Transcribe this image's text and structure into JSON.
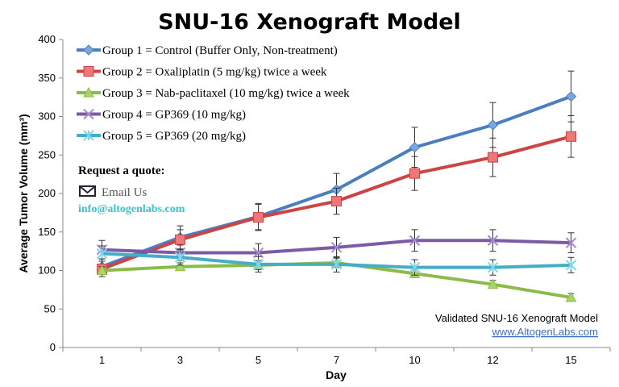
{
  "chart_data": {
    "type": "line",
    "title": "SNU-16 Xenograft Model",
    "xlabel": "Day",
    "ylabel": "Average Tumor Volume (mm³)",
    "categories": [
      "1",
      "3",
      "5",
      "7",
      "10",
      "12",
      "15"
    ],
    "ylim": [
      0,
      400
    ],
    "yticks": [
      0,
      50,
      100,
      150,
      200,
      250,
      300,
      350,
      400
    ],
    "grid": false,
    "legend_placement": "top-left",
    "series": [
      {
        "name": "Group 1 = Control (Buffer Only, Non-treatment)",
        "color": "#4a7ebf",
        "marker": "diamond",
        "values": [
          105,
          143,
          170,
          205,
          260,
          289,
          326
        ],
        "errors": [
          10,
          15,
          17,
          21,
          26,
          29,
          33
        ]
      },
      {
        "name": "Group 2 = Oxaliplatin (5 mg/kg) twice a week",
        "color": "#cc4444",
        "marker": "square",
        "values": [
          102,
          140,
          169,
          190,
          226,
          247,
          274
        ],
        "errors": [
          10,
          13,
          17,
          17,
          22,
          25,
          27
        ]
      },
      {
        "name": "Group 3 = Nab-paclitaxel (10 mg/kg) twice a week",
        "color": "#8dbb4a",
        "marker": "triangle",
        "values": [
          100,
          105,
          107,
          110,
          96,
          82,
          65
        ],
        "errors": [
          5,
          5,
          6,
          6,
          5,
          5,
          5
        ]
      },
      {
        "name": "Group 4 = GP369 (10 mg/kg)",
        "color": "#7b5aa6",
        "marker": "x",
        "values": [
          127,
          123,
          123,
          130,
          139,
          139,
          136
        ],
        "errors": [
          12,
          10,
          12,
          13,
          14,
          14,
          13
        ]
      },
      {
        "name": "Group 5 = GP369 (20 mg/kg)",
        "color": "#44aec6",
        "marker": "star",
        "values": [
          122,
          117,
          108,
          108,
          104,
          104,
          107
        ],
        "errors": [
          10,
          10,
          10,
          10,
          10,
          10,
          10
        ]
      }
    ]
  },
  "overlay": {
    "request_quote": "Request a quote:",
    "email_us": "Email Us",
    "email_address": "info@altogenlabs.com",
    "validated": "Validated SNU-16 Xenograft Model",
    "website": "www.AltogenLabs.com",
    "email_icon": "envelope-icon"
  }
}
